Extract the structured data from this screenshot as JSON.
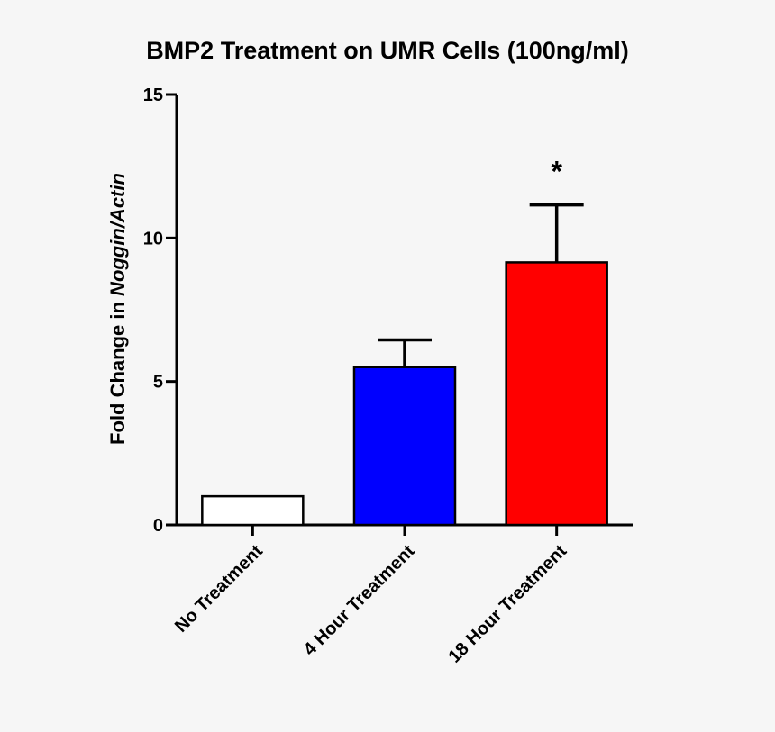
{
  "chart_data": {
    "type": "bar",
    "title": "BMP2 Treatment on UMR Cells (100ng/ml)",
    "ylabel_prefix": "Fold Change in ",
    "ylabel_italic": "Noggin/Actin",
    "xlabel": "",
    "categories": [
      "No Treatment",
      "4 Hour Treatment",
      "18 Hour Treatment"
    ],
    "values": [
      1.0,
      5.5,
      9.15
    ],
    "errors": [
      0,
      0.95,
      2.0
    ],
    "bar_colors": [
      "#ffffff",
      "#0000ff",
      "#ff0000"
    ],
    "annotations": [
      "",
      "",
      "*"
    ],
    "ylim": [
      0,
      15
    ],
    "yticks": [
      0,
      5,
      10,
      15
    ],
    "ytick_labels": [
      "0",
      "5",
      "10",
      "15"
    ],
    "grid": false,
    "legend": "none"
  }
}
